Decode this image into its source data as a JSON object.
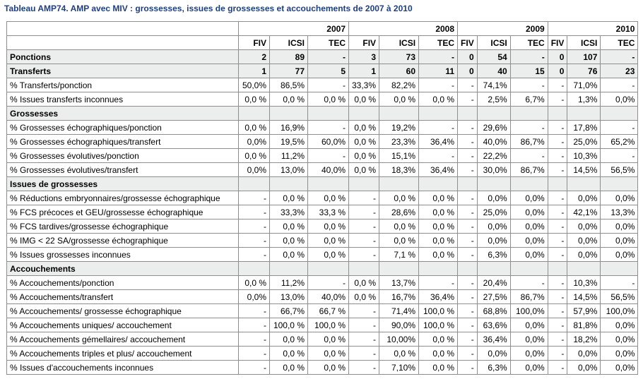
{
  "title": "Tableau AMP74.  AMP avec MIV : grossesses, issues de grossesses et accouchements de 2007 à 2010",
  "years": [
    "2007",
    "2008",
    "2009",
    "2010"
  ],
  "subcols": [
    "FIV",
    "ICSI",
    "TEC",
    "FIV",
    "ICSI",
    "TEC",
    "FIV",
    "ICSI",
    "TEC",
    "FIV",
    "ICSI",
    "TEC"
  ],
  "rows": [
    {
      "type": "bold",
      "label": "Ponctions",
      "values": [
        "2",
        "89",
        "-",
        "3",
        "73",
        "-",
        "0",
        "54",
        "-",
        "0",
        "107",
        "-"
      ]
    },
    {
      "type": "bold",
      "label": "Transferts",
      "values": [
        "1",
        "77",
        "5",
        "1",
        "60",
        "11",
        "0",
        "40",
        "15",
        "0",
        "76",
        "23"
      ]
    },
    {
      "type": "data",
      "label": "% Transferts/ponction",
      "values": [
        "50,0%",
        "86,5%",
        "-",
        "33,3%",
        "82,2%",
        "-",
        "-",
        "74,1%",
        "-",
        "-",
        "71,0%",
        "-"
      ]
    },
    {
      "type": "data",
      "label": "% Issues transferts inconnues",
      "values": [
        "0,0 %",
        "0,0 %",
        "0,0 %",
        "0,0 %",
        "0,0 %",
        "0,0 %",
        "-",
        "2,5%",
        "6,7%",
        "-",
        "1,3%",
        "0,0%"
      ]
    },
    {
      "type": "section",
      "label": "Grossesses"
    },
    {
      "type": "data",
      "label": "% Grossesses échographiques/ponction",
      "values": [
        "0,0 %",
        "16,9%",
        "-",
        "0,0 %",
        "19,2%",
        "-",
        "-",
        "29,6%",
        "-",
        "-",
        "17,8%",
        "-"
      ]
    },
    {
      "type": "data",
      "label": "% Grossesses échographiques/transfert",
      "values": [
        "0,0%",
        "19,5%",
        "60,0%",
        "0,0 %",
        "23,3%",
        "36,4%",
        "-",
        "40,0%",
        "86,7%",
        "-",
        "25,0%",
        "65,2%"
      ]
    },
    {
      "type": "data",
      "label": "% Grossesses évolutives/ponction",
      "values": [
        "0,0 %",
        "11,2%",
        "-",
        "0,0 %",
        "15,1%",
        "-",
        "-",
        "22,2%",
        "-",
        "-",
        "10,3%",
        "-"
      ]
    },
    {
      "type": "data",
      "label": "% Grossesses évolutives/transfert",
      "values": [
        "0,0%",
        "13,0%",
        "40,0%",
        "0,0 %",
        "18,3%",
        "36,4%",
        "-",
        "30,0%",
        "86,7%",
        "-",
        "14,5%",
        "56,5%"
      ]
    },
    {
      "type": "section",
      "label": "Issues de grossesses"
    },
    {
      "type": "data",
      "label": "% Réductions embryonnaires/grossesse échographique",
      "values": [
        "-",
        "0,0 %",
        "0,0 %",
        "-",
        "0,0 %",
        "0,0 %",
        "-",
        "0,0%",
        "0,0%",
        "-",
        "0,0%",
        "0,0%"
      ]
    },
    {
      "type": "data",
      "label": "% FCS précoces et GEU/grossesse échographique",
      "values": [
        "-",
        "33,3%",
        "33,3 %",
        "-",
        "28,6%",
        "0,0 %",
        "-",
        "25,0%",
        "0,0%",
        "-",
        "42,1%",
        "13,3%"
      ]
    },
    {
      "type": "data",
      "label": "% FCS tardives/grossesse échographique",
      "values": [
        "-",
        "0,0 %",
        "0,0 %",
        "-",
        "0,0 %",
        "0,0 %",
        "-",
        "0,0%",
        "0,0%",
        "-",
        "0,0%",
        "0,0%"
      ]
    },
    {
      "type": "data",
      "label": "% IMG < 22 SA/grossesse échographique",
      "values": [
        "-",
        "0,0 %",
        "0,0 %",
        "-",
        "0,0 %",
        "0,0 %",
        "-",
        "0,0%",
        "0,0%",
        "-",
        "0,0%",
        "0,0%"
      ]
    },
    {
      "type": "data",
      "label": "% Issues grossesses inconnues",
      "values": [
        "-",
        "0,0 %",
        "0,0 %",
        "-",
        "7,1 %",
        "0,0 %",
        "-",
        "6,3%",
        "0,0%",
        "-",
        "0,0%",
        "0,0%"
      ]
    },
    {
      "type": "section",
      "label": "Accouchements"
    },
    {
      "type": "data",
      "label": "% Accouchements/ponction",
      "values": [
        "0,0 %",
        "11,2%",
        "-",
        "0,0 %",
        "13,7%",
        "-",
        "-",
        "20,4%",
        "-",
        "-",
        "10,3%",
        "-"
      ]
    },
    {
      "type": "data",
      "label": "% Accouchements/transfert",
      "values": [
        "0,0%",
        "13,0%",
        "40,0%",
        "0,0 %",
        "16,7%",
        "36,4%",
        "-",
        "27,5%",
        "86,7%",
        "-",
        "14,5%",
        "56,5%"
      ]
    },
    {
      "type": "data",
      "label": "% Accouchements/ grossesse échographique",
      "values": [
        "-",
        "66,7%",
        "66,7 %",
        "-",
        "71,4%",
        "100,0 %",
        "-",
        "68,8%",
        "100,0%",
        "-",
        "57,9%",
        "100,0%"
      ]
    },
    {
      "type": "data",
      "label": "% Accouchements uniques/ accouchement",
      "values": [
        "-",
        "100,0 %",
        "100,0 %",
        "-",
        "90,0%",
        "100,0 %",
        "-",
        "63,6%",
        "0,0%",
        "-",
        "81,8%",
        "0,0%"
      ]
    },
    {
      "type": "data",
      "label": "% Accouchements gémellaires/ accouchement",
      "values": [
        "-",
        "0,0 %",
        "0,0 %",
        "-",
        "10,00%",
        "0,0 %",
        "-",
        "36,4%",
        "0,0%",
        "-",
        "18,2%",
        "0,0%"
      ]
    },
    {
      "type": "data",
      "label": "% Accouchements triples et plus/ accouchement",
      "values": [
        "-",
        "0,0 %",
        "0,0 %",
        "-",
        "0,0 %",
        "0,0 %",
        "-",
        "0,0%",
        "0,0%",
        "-",
        "0,0%",
        "0,0%"
      ]
    },
    {
      "type": "data",
      "label": "% Issues d'accouchements inconnues",
      "values": [
        "-",
        "0,0 %",
        "0,0 %",
        "-",
        "7,10%",
        "0,0 %",
        "-",
        "6,3%",
        "0,0%",
        "-",
        "0,0%",
        "0,0%"
      ]
    }
  ]
}
